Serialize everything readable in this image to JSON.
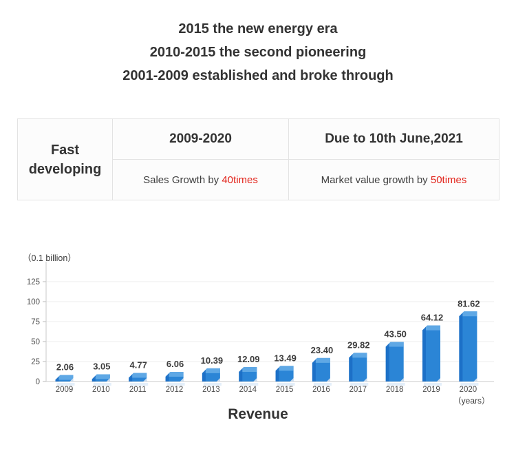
{
  "header": {
    "lines": [
      "2015 the new energy era",
      "2010-2015 the second pioneering",
      "2001-2009 established and broke through"
    ]
  },
  "table": {
    "row_header": "Fast developing",
    "highlight_color": "#E2231A",
    "columns": [
      {
        "header": "2009-2020",
        "detail_text": "Sales Growth by ",
        "detail_highlight": "40times"
      },
      {
        "header": "Due to 10th June,2021",
        "detail_text": "Market value growth by ",
        "detail_highlight": "50times"
      }
    ]
  },
  "chart_data": {
    "type": "bar",
    "title": "Revenue",
    "unit_label": "（0.1 billion）",
    "x_axis_label": "（years）",
    "categories": [
      "2009",
      "2010",
      "2011",
      "2012",
      "2013",
      "2014",
      "2015",
      "2016",
      "2017",
      "2018",
      "2019",
      "2020"
    ],
    "values": [
      2.06,
      3.05,
      4.77,
      6.06,
      10.39,
      12.09,
      13.49,
      23.4,
      29.82,
      43.5,
      64.12,
      81.62
    ],
    "value_labels": [
      "2.06",
      "3.05",
      "4.77",
      "6.06",
      "10.39",
      "12.09",
      "13.49",
      "23.40",
      "29.82",
      "43.50",
      "64.12",
      "81.62"
    ],
    "y_ticks": [
      0,
      25,
      50,
      75,
      100,
      125
    ],
    "ylim": [
      0,
      145
    ],
    "grid": true,
    "legend": false,
    "colors": {
      "bar_front": "#2B85D6",
      "bar_top": "#5FA8E5",
      "bar_side": "#1A6CC4",
      "bar_notch": "#CBDCEE",
      "grid_line": "#ECECEC",
      "axis_line": "#C9C9C9",
      "value_label": "#3C3C3C",
      "tick_label": "#4F4F4F"
    }
  }
}
